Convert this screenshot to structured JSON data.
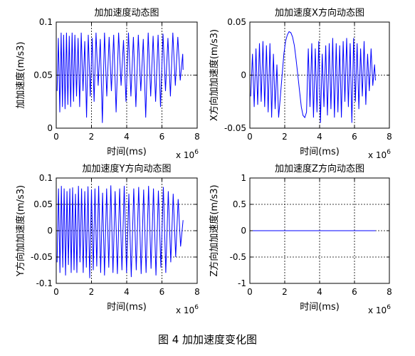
{
  "figure_caption": "图 4  加加速度变化图",
  "chart_data": [
    {
      "type": "line",
      "title": "加加速度动态图",
      "xlabel": "时间(ms)",
      "ylabel": "加加速度(m/s3)",
      "x_exponent_label": "x 10",
      "x_exponent": "6",
      "xlim": [
        0,
        8
      ],
      "ylim": [
        0,
        0.1
      ],
      "xticks": [
        "0",
        "2",
        "4",
        "6",
        "8"
      ],
      "yticks": [
        "0",
        "0.05",
        "0.1"
      ],
      "grid": true,
      "series": [
        {
          "color": "#0000ff",
          "x": [
            0.05,
            0.12,
            0.2,
            0.28,
            0.35,
            0.42,
            0.5,
            0.58,
            0.66,
            0.74,
            0.82,
            0.9,
            0.98,
            1.06,
            1.15,
            1.24,
            1.33,
            1.42,
            1.52,
            1.62,
            1.72,
            1.82,
            1.93,
            2.04,
            2.15,
            2.26,
            2.38,
            2.5,
            2.62,
            2.74,
            2.87,
            3.0,
            3.13,
            3.26,
            3.4,
            3.54,
            3.68,
            3.82,
            3.96,
            4.1,
            4.24,
            4.38,
            4.52,
            4.66,
            4.8,
            4.94,
            5.08,
            5.22,
            5.36,
            5.5,
            5.64,
            5.78,
            5.92,
            6.06,
            6.2,
            6.34,
            6.48,
            6.62,
            6.76,
            6.9,
            7.04,
            7.18,
            7.2
          ],
          "values": [
            0.035,
            0.085,
            0.015,
            0.09,
            0.02,
            0.088,
            0.018,
            0.09,
            0.022,
            0.087,
            0.02,
            0.09,
            0.025,
            0.088,
            0.03,
            0.085,
            0.02,
            0.09,
            0.035,
            0.082,
            0.01,
            0.088,
            0.03,
            0.085,
            0.025,
            0.09,
            0.04,
            0.084,
            0.005,
            0.09,
            0.03,
            0.086,
            0.035,
            0.088,
            0.015,
            0.09,
            0.04,
            0.083,
            0.025,
            0.09,
            0.03,
            0.086,
            0.02,
            0.088,
            0.035,
            0.084,
            0.01,
            0.09,
            0.03,
            0.087,
            0.025,
            0.088,
            0.02,
            0.089,
            0.035,
            0.085,
            0.03,
            0.09,
            0.04,
            0.086,
            0.045,
            0.07,
            0.055
          ]
        }
      ]
    },
    {
      "type": "line",
      "title": "加加速度X方向动态图",
      "xlabel": "时间(ms)",
      "ylabel": "X方向加加速度(m/s3)",
      "x_exponent_label": "x 10",
      "x_exponent": "6",
      "xlim": [
        0,
        8
      ],
      "ylim": [
        -0.05,
        0.05
      ],
      "xticks": [
        "0",
        "2",
        "4",
        "6",
        "8"
      ],
      "yticks": [
        "-0.05",
        "0",
        "0.05"
      ],
      "grid": true,
      "series": [
        {
          "color": "#0000ff",
          "x": [
            0.05,
            0.15,
            0.25,
            0.35,
            0.45,
            0.55,
            0.65,
            0.75,
            0.85,
            0.95,
            1.05,
            1.15,
            1.25,
            1.35,
            1.45,
            1.55,
            1.65,
            1.75,
            1.85,
            1.95,
            2.05,
            2.15,
            2.25,
            2.35,
            2.45,
            2.55,
            2.65,
            2.75,
            2.85,
            2.95,
            3.05,
            3.15,
            3.25,
            3.35,
            3.45,
            3.55,
            3.65,
            3.75,
            3.85,
            3.95,
            4.05,
            4.15,
            4.25,
            4.35,
            4.45,
            4.55,
            4.65,
            4.75,
            4.85,
            4.95,
            5.05,
            5.15,
            5.25,
            5.35,
            5.45,
            5.55,
            5.65,
            5.75,
            5.85,
            5.95,
            6.05,
            6.15,
            6.25,
            6.35,
            6.45,
            6.55,
            6.65,
            6.75,
            6.85,
            6.95,
            7.05,
            7.15,
            7.2
          ],
          "values": [
            -0.02,
            0.02,
            -0.03,
            0.025,
            -0.028,
            0.03,
            -0.025,
            0.032,
            -0.03,
            0.028,
            -0.035,
            0.03,
            -0.04,
            0.02,
            -0.032,
            0.01,
            -0.04,
            -0.02,
            0.0,
            0.02,
            0.032,
            0.038,
            0.041,
            0.04,
            0.036,
            0.028,
            0.015,
            0.0,
            -0.015,
            -0.03,
            -0.038,
            -0.04,
            -0.035,
            0.025,
            -0.03,
            0.03,
            -0.04,
            0.025,
            -0.035,
            0.032,
            -0.045,
            0.02,
            -0.03,
            0.028,
            -0.038,
            0.03,
            -0.032,
            0.035,
            -0.04,
            0.03,
            -0.035,
            0.028,
            -0.04,
            0.032,
            -0.025,
            0.035,
            -0.03,
            0.03,
            -0.045,
            0.035,
            -0.025,
            0.03,
            -0.032,
            0.025,
            -0.02,
            0.032,
            -0.028,
            0.02,
            -0.015,
            0.025,
            -0.01,
            0.01,
            -0.005
          ]
        }
      ]
    },
    {
      "type": "line",
      "title": "加加速度Y方向动态图",
      "xlabel": "时间(ms)",
      "ylabel": "Y方向加加速度(m/s3)",
      "x_exponent_label": "x 10",
      "x_exponent": "6",
      "xlim": [
        0,
        8
      ],
      "ylim": [
        -0.1,
        0.1
      ],
      "xticks": [
        "0",
        "2",
        "4",
        "6",
        "8"
      ],
      "yticks": [
        "-0.1",
        "-0.05",
        "0",
        "0.05",
        "0.1"
      ],
      "grid": true,
      "series": [
        {
          "color": "#0000ff",
          "x": [
            0.05,
            0.13,
            0.21,
            0.29,
            0.37,
            0.45,
            0.53,
            0.61,
            0.69,
            0.77,
            0.85,
            0.93,
            1.01,
            1.09,
            1.17,
            1.26,
            1.35,
            1.44,
            1.53,
            1.62,
            1.71,
            1.8,
            1.9,
            2.0,
            2.1,
            2.2,
            2.3,
            2.41,
            2.52,
            2.63,
            2.74,
            2.86,
            2.98,
            3.1,
            3.22,
            3.34,
            3.47,
            3.6,
            3.73,
            3.86,
            3.99,
            4.12,
            4.26,
            4.4,
            4.54,
            4.68,
            4.82,
            4.96,
            5.1,
            5.24,
            5.38,
            5.52,
            5.66,
            5.8,
            5.94,
            6.08,
            6.22,
            6.36,
            6.5,
            6.64,
            6.78,
            6.92,
            7.06,
            7.2
          ],
          "values": [
            -0.06,
            0.08,
            -0.08,
            0.085,
            -0.07,
            0.08,
            -0.085,
            0.075,
            -0.065,
            0.08,
            -0.08,
            0.082,
            -0.075,
            0.07,
            -0.08,
            0.085,
            -0.06,
            0.08,
            -0.08,
            0.075,
            -0.07,
            0.084,
            -0.09,
            0.078,
            -0.075,
            0.08,
            -0.068,
            0.085,
            -0.08,
            0.072,
            -0.085,
            0.08,
            -0.07,
            0.086,
            -0.08,
            0.075,
            -0.082,
            0.08,
            -0.075,
            0.085,
            -0.08,
            0.07,
            -0.088,
            0.08,
            -0.075,
            0.083,
            -0.082,
            0.078,
            -0.08,
            0.085,
            -0.072,
            0.08,
            -0.085,
            0.076,
            -0.07,
            0.083,
            -0.08,
            0.075,
            -0.06,
            0.07,
            -0.05,
            0.06,
            -0.03,
            0.02
          ]
        }
      ]
    },
    {
      "type": "line",
      "title": "加加速度Z方向动态图",
      "xlabel": "时间(ms)",
      "ylabel": "Z方向加加速度(m/s3)",
      "x_exponent_label": "x 10",
      "x_exponent": "6",
      "xlim": [
        0,
        8
      ],
      "ylim": [
        -1,
        1
      ],
      "xticks": [
        "0",
        "2",
        "4",
        "6",
        "8"
      ],
      "yticks": [
        "-1",
        "-0.5",
        "0",
        "0.5",
        "1"
      ],
      "grid": true,
      "series": [
        {
          "color": "#0000ff",
          "x": [
            0,
            7.2
          ],
          "values": [
            0,
            0
          ]
        }
      ]
    }
  ]
}
